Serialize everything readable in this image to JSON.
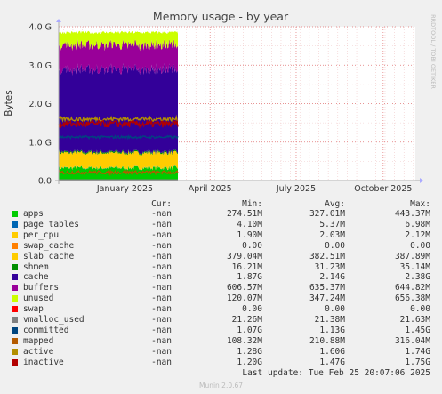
{
  "chart_data": {
    "type": "area",
    "title": "Memory usage - by year",
    "ylabel": "Bytes",
    "side_label": "RRDTOOL / TOBI OETIKER",
    "ylim": [
      0,
      4.0
    ],
    "y_unit": "G",
    "yticks": [
      "0.0",
      "1.0 G",
      "2.0 G",
      "3.0 G",
      "4.0 G"
    ],
    "ytick_values": [
      0,
      1.0,
      2.0,
      3.0,
      4.0
    ],
    "xticks": [
      "January 2025",
      "April 2025",
      "July 2025",
      "October 2025"
    ],
    "xtick_days": [
      0,
      90,
      181,
      273
    ],
    "xlim_days": [
      -70,
      307
    ],
    "data_span_days": [
      -70,
      56
    ],
    "stack_order": [
      "apps",
      "page_tables",
      "per_cpu",
      "swap_cache",
      "slab_cache",
      "shmem",
      "cache",
      "buffers",
      "unused",
      "swap"
    ],
    "line_order": [
      "vmalloc_used",
      "committed",
      "mapped",
      "active",
      "inactive"
    ],
    "series": [
      {
        "name": "apps",
        "color": "#00cc00",
        "avg_g": 0.327
      },
      {
        "name": "page_tables",
        "color": "#0066b3",
        "avg_g": 0.0054
      },
      {
        "name": "per_cpu",
        "color": "#ffcc00",
        "avg_g": 0.002
      },
      {
        "name": "swap_cache",
        "color": "#ff8000",
        "avg_g": 0.0
      },
      {
        "name": "slab_cache",
        "color": "#ffcc00",
        "avg_g": 0.3825
      },
      {
        "name": "shmem",
        "color": "#008f00",
        "avg_g": 0.0312
      },
      {
        "name": "cache",
        "color": "#330099",
        "avg_g": 2.14
      },
      {
        "name": "buffers",
        "color": "#990099",
        "avg_g": 0.635
      },
      {
        "name": "unused",
        "color": "#ccff00",
        "avg_g": 0.347
      },
      {
        "name": "swap",
        "color": "#ff0000",
        "avg_g": 0.0
      },
      {
        "name": "vmalloc_used",
        "color": "#808080",
        "avg_g": 0.0214
      },
      {
        "name": "committed",
        "color": "#00457f",
        "avg_g": 1.13
      },
      {
        "name": "mapped",
        "color": "#b35a00",
        "avg_g": 0.211
      },
      {
        "name": "active",
        "color": "#b38f00",
        "avg_g": 1.6
      },
      {
        "name": "inactive",
        "color": "#b30000",
        "avg_g": 1.47
      }
    ]
  },
  "legend": {
    "headers": {
      "cur": "Cur:",
      "min": "Min:",
      "avg": "Avg:",
      "max": "Max:"
    },
    "rows": [
      {
        "name": "apps",
        "color": "#00cc00",
        "cur": "-nan",
        "min": "274.51M",
        "avg": "327.01M",
        "max": "443.37M"
      },
      {
        "name": "page_tables",
        "color": "#0066b3",
        "cur": "-nan",
        "min": "4.10M",
        "avg": "5.37M",
        "max": "6.98M"
      },
      {
        "name": "per_cpu",
        "color": "#ffcc00",
        "cur": "-nan",
        "min": "1.90M",
        "avg": "2.03M",
        "max": "2.12M"
      },
      {
        "name": "swap_cache",
        "color": "#ff8000",
        "cur": "-nan",
        "min": "0.00",
        "avg": "0.00",
        "max": "0.00"
      },
      {
        "name": "slab_cache",
        "color": "#ffcc00",
        "cur": "-nan",
        "min": "379.04M",
        "avg": "382.51M",
        "max": "387.89M"
      },
      {
        "name": "shmem",
        "color": "#008f00",
        "cur": "-nan",
        "min": "16.21M",
        "avg": "31.23M",
        "max": "35.14M"
      },
      {
        "name": "cache",
        "color": "#330099",
        "cur": "-nan",
        "min": "1.87G",
        "avg": "2.14G",
        "max": "2.38G"
      },
      {
        "name": "buffers",
        "color": "#990099",
        "cur": "-nan",
        "min": "606.57M",
        "avg": "635.37M",
        "max": "644.82M"
      },
      {
        "name": "unused",
        "color": "#ccff00",
        "cur": "-nan",
        "min": "120.07M",
        "avg": "347.24M",
        "max": "656.38M"
      },
      {
        "name": "swap",
        "color": "#ff0000",
        "cur": "-nan",
        "min": "0.00",
        "avg": "0.00",
        "max": "0.00"
      },
      {
        "name": "vmalloc_used",
        "color": "#808080",
        "cur": "-nan",
        "min": "21.26M",
        "avg": "21.38M",
        "max": "21.63M"
      },
      {
        "name": "committed",
        "color": "#00457f",
        "cur": "-nan",
        "min": "1.07G",
        "avg": "1.13G",
        "max": "1.45G"
      },
      {
        "name": "mapped",
        "color": "#b35a00",
        "cur": "-nan",
        "min": "108.32M",
        "avg": "210.88M",
        "max": "316.04M"
      },
      {
        "name": "active",
        "color": "#b38f00",
        "cur": "-nan",
        "min": "1.28G",
        "avg": "1.60G",
        "max": "1.74G"
      },
      {
        "name": "inactive",
        "color": "#b30000",
        "cur": "-nan",
        "min": "1.20G",
        "avg": "1.47G",
        "max": "1.75G"
      }
    ]
  },
  "footer": {
    "last_update": "Last update: Tue Feb 25 20:07:06 2025",
    "version": "Munin 2.0.67"
  }
}
